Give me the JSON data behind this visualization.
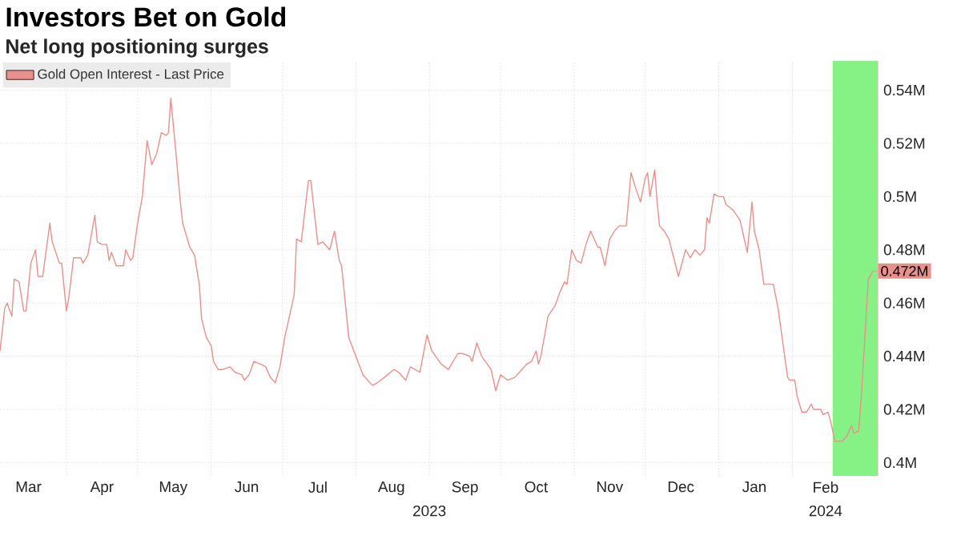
{
  "chart_data": {
    "type": "line",
    "title": "Investors Bet on Gold",
    "subtitle": "Net long positioning surges",
    "x": [
      "2023-03-04",
      "2023-03-06",
      "2023-03-07",
      "2023-03-09",
      "2023-03-10",
      "2023-03-12",
      "2023-03-14",
      "2023-03-15",
      "2023-03-17",
      "2023-03-19",
      "2023-03-20",
      "2023-03-22",
      "2023-03-25",
      "2023-03-26",
      "2023-03-29",
      "2023-03-30",
      "2023-04-01",
      "2023-04-02",
      "2023-04-04",
      "2023-04-07",
      "2023-04-08",
      "2023-04-10",
      "2023-04-13",
      "2023-04-14",
      "2023-04-16",
      "2023-04-18",
      "2023-04-19",
      "2023-04-20",
      "2023-04-22",
      "2023-04-24",
      "2023-04-25",
      "2023-04-26",
      "2023-04-28",
      "2023-04-29",
      "2023-05-01",
      "2023-05-03",
      "2023-05-05",
      "2023-05-07",
      "2023-05-09",
      "2023-05-11",
      "2023-05-13",
      "2023-05-14",
      "2023-05-15",
      "2023-05-17",
      "2023-05-19",
      "2023-05-20",
      "2023-05-21",
      "2023-05-23",
      "2023-05-25",
      "2023-05-27",
      "2023-05-28",
      "2023-05-30",
      "2023-06-01",
      "2023-06-02",
      "2023-06-04",
      "2023-06-06",
      "2023-06-09",
      "2023-06-11",
      "2023-06-14",
      "2023-06-15",
      "2023-06-17",
      "2023-06-19",
      "2023-06-22",
      "2023-06-24",
      "2023-06-26",
      "2023-06-28",
      "2023-06-30",
      "2023-07-02",
      "2023-07-06",
      "2023-07-07",
      "2023-07-09",
      "2023-07-12",
      "2023-07-13",
      "2023-07-16",
      "2023-07-18",
      "2023-07-21",
      "2023-07-23",
      "2023-07-25",
      "2023-07-26",
      "2023-07-29",
      "2023-08-01",
      "2023-08-04",
      "2023-08-08",
      "2023-08-10",
      "2023-08-13",
      "2023-08-17",
      "2023-08-19",
      "2023-08-22",
      "2023-08-24",
      "2023-08-28",
      "2023-08-31",
      "2023-09-02",
      "2023-09-06",
      "2023-09-09",
      "2023-09-13",
      "2023-09-15",
      "2023-09-18",
      "2023-09-19",
      "2023-09-21",
      "2023-09-23",
      "2023-09-27",
      "2023-09-29",
      "2023-10-01",
      "2023-10-04",
      "2023-10-07",
      "2023-10-09",
      "2023-10-12",
      "2023-10-14",
      "2023-10-16",
      "2023-10-17",
      "2023-10-18",
      "2023-10-21",
      "2023-10-24",
      "2023-10-26",
      "2023-10-28",
      "2023-10-29",
      "2023-10-31",
      "2023-11-02",
      "2023-11-04",
      "2023-11-06",
      "2023-11-08",
      "2023-11-11",
      "2023-11-12",
      "2023-11-14",
      "2023-11-16",
      "2023-11-18",
      "2023-11-20",
      "2023-11-23",
      "2023-11-25",
      "2023-11-27",
      "2023-11-29",
      "2023-12-01",
      "2023-12-02",
      "2023-12-03",
      "2023-12-05",
      "2023-12-06",
      "2023-12-07",
      "2023-12-09",
      "2023-12-11",
      "2023-12-13",
      "2023-12-15",
      "2023-12-18",
      "2023-12-20",
      "2023-12-22",
      "2023-12-24",
      "2023-12-26",
      "2023-12-27",
      "2023-12-28",
      "2023-12-30",
      "2024-01-01",
      "2024-01-03",
      "2024-01-04",
      "2024-01-07",
      "2024-01-10",
      "2024-01-12",
      "2024-01-13",
      "2024-01-15",
      "2024-01-16",
      "2024-01-18",
      "2024-01-20",
      "2024-01-22",
      "2024-01-24",
      "2024-01-26",
      "2024-01-28",
      "2024-01-30",
      "2024-01-31",
      "2024-02-02",
      "2024-02-03",
      "2024-02-05",
      "2024-02-07",
      "2024-02-09",
      "2024-02-10",
      "2024-02-13",
      "2024-02-14",
      "2024-02-16",
      "2024-02-17",
      "2024-02-19",
      "2024-02-22",
      "2024-02-24",
      "2024-02-26",
      "2024-02-27",
      "2024-02-29",
      "2024-03-01",
      "2024-03-03",
      "2024-03-04",
      "2024-03-06"
    ],
    "series": [
      {
        "name": "Gold Open Interest - Last Price",
        "color": "#e8908c",
        "values": [
          0.442,
          0.458,
          0.46,
          0.455,
          0.469,
          0.468,
          0.457,
          0.457,
          0.475,
          0.48,
          0.47,
          0.47,
          0.49,
          0.483,
          0.475,
          0.475,
          0.457,
          0.462,
          0.477,
          0.477,
          0.475,
          0.478,
          0.493,
          0.483,
          0.482,
          0.482,
          0.476,
          0.479,
          0.474,
          0.474,
          0.474,
          0.48,
          0.476,
          0.477,
          0.49,
          0.5,
          0.521,
          0.512,
          0.516,
          0.524,
          0.523,
          0.524,
          0.537,
          0.518,
          0.498,
          0.49,
          0.487,
          0.481,
          0.478,
          0.467,
          0.454,
          0.447,
          0.444,
          0.438,
          0.435,
          0.435,
          0.436,
          0.434,
          0.433,
          0.431,
          0.433,
          0.438,
          0.437,
          0.436,
          0.432,
          0.43,
          0.436,
          0.447,
          0.463,
          0.484,
          0.483,
          0.506,
          0.506,
          0.482,
          0.483,
          0.48,
          0.487,
          0.476,
          0.474,
          0.447,
          0.44,
          0.433,
          0.429,
          0.43,
          0.432,
          0.435,
          0.434,
          0.431,
          0.436,
          0.434,
          0.448,
          0.442,
          0.437,
          0.435,
          0.441,
          0.441,
          0.44,
          0.438,
          0.445,
          0.44,
          0.435,
          0.427,
          0.433,
          0.431,
          0.432,
          0.434,
          0.437,
          0.438,
          0.442,
          0.437,
          0.44,
          0.455,
          0.459,
          0.464,
          0.468,
          0.467,
          0.48,
          0.476,
          0.475,
          0.482,
          0.487,
          0.481,
          0.481,
          0.474,
          0.484,
          0.487,
          0.489,
          0.489,
          0.509,
          0.503,
          0.498,
          0.507,
          0.509,
          0.5,
          0.51,
          0.498,
          0.489,
          0.487,
          0.484,
          0.477,
          0.47,
          0.48,
          0.477,
          0.48,
          0.478,
          0.48,
          0.492,
          0.49,
          0.501,
          0.5,
          0.5,
          0.497,
          0.495,
          0.491,
          0.483,
          0.479,
          0.498,
          0.487,
          0.48,
          0.467,
          0.467,
          0.467,
          0.458,
          0.445,
          0.432,
          0.431,
          0.431,
          0.425,
          0.419,
          0.419,
          0.422,
          0.42,
          0.42,
          0.418,
          0.419,
          0.416,
          0.408,
          0.408,
          0.41,
          0.414,
          0.411,
          0.412,
          0.424,
          0.453,
          0.469,
          0.472
        ]
      }
    ],
    "xlim": [
      "2023-03-04",
      "2024-03-08"
    ],
    "ylim": [
      0.395,
      0.551
    ],
    "xticks": [
      {
        "value": "2023-03-16",
        "label": "Mar"
      },
      {
        "value": "2023-04-16",
        "label": "Apr"
      },
      {
        "value": "2023-05-16",
        "label": "May"
      },
      {
        "value": "2023-06-16",
        "label": "Jun"
      },
      {
        "value": "2023-07-16",
        "label": "Jul"
      },
      {
        "value": "2023-08-16",
        "label": "Aug"
      },
      {
        "value": "2023-09-16",
        "label": "Sep"
      },
      {
        "value": "2023-10-16",
        "label": "Oct"
      },
      {
        "value": "2023-11-16",
        "label": "Nov"
      },
      {
        "value": "2023-12-16",
        "label": "Dec"
      },
      {
        "value": "2024-01-16",
        "label": "Jan"
      },
      {
        "value": "2024-02-15",
        "label": "Feb"
      },
      {
        "value": "2023-04-01",
        "label": null
      },
      {
        "value": "2023-05-01",
        "label": null
      },
      {
        "value": "2023-06-01",
        "label": null
      },
      {
        "value": "2023-07-01",
        "label": null
      },
      {
        "value": "2023-08-01",
        "label": null
      },
      {
        "value": "2023-09-01",
        "label": null
      },
      {
        "value": "2023-10-01",
        "label": null
      },
      {
        "value": "2023-11-01",
        "label": null
      },
      {
        "value": "2023-12-01",
        "label": null
      },
      {
        "value": "2024-01-01",
        "label": null
      },
      {
        "value": "2024-02-01",
        "label": null
      },
      {
        "value": "2024-03-01",
        "label": null
      }
    ],
    "yticks": [
      {
        "value": 0.4,
        "label": "0.4M"
      },
      {
        "value": 0.42,
        "label": "0.42M"
      },
      {
        "value": 0.44,
        "label": "0.44M"
      },
      {
        "value": 0.46,
        "label": "0.46M"
      },
      {
        "value": 0.48,
        "label": "0.48M"
      },
      {
        "value": 0.5,
        "label": "0.5M"
      },
      {
        "value": 0.52,
        "label": "0.52M"
      },
      {
        "value": 0.54,
        "label": "0.54M"
      }
    ],
    "x2lim": [
      "2023-03-04",
      "2024-03-08"
    ],
    "x2ticks": [
      {
        "value": "2023-09-01",
        "label": "2023"
      },
      {
        "value": "2024-02-15",
        "label": "2024"
      }
    ],
    "grid": true,
    "legend": "top left",
    "bands": [
      {
        "axis": "x",
        "from": "2024-02-18",
        "to": "2024-03-08",
        "color": "#86f286"
      }
    ],
    "annotations": [
      {
        "text": "0.472M",
        "x": "2024-03-06",
        "y": 0.472
      }
    ]
  }
}
